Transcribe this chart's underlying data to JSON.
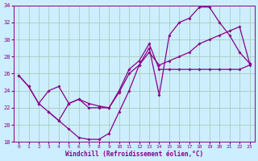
{
  "xlabel": "Windchill (Refroidissement éolien,°C)",
  "bg_color": "#cceeff",
  "grid_color": "#aaccbb",
  "line_color": "#880088",
  "xlim": [
    -0.5,
    23.5
  ],
  "ylim": [
    18,
    34
  ],
  "xticks": [
    0,
    1,
    2,
    3,
    4,
    5,
    6,
    7,
    8,
    9,
    10,
    11,
    12,
    13,
    14,
    15,
    16,
    17,
    18,
    19,
    20,
    21,
    22,
    23
  ],
  "yticks": [
    18,
    20,
    22,
    24,
    26,
    28,
    30,
    32,
    34
  ],
  "line1_x": [
    0,
    1,
    2,
    3,
    4,
    5,
    6,
    7,
    8,
    9,
    10,
    11,
    12,
    13,
    14,
    15,
    16,
    17,
    18,
    19,
    20,
    21,
    22,
    23
  ],
  "line1_y": [
    25.8,
    24.5,
    22.5,
    21.5,
    20.5,
    19.5,
    18.5,
    18.3,
    18.3,
    19.0,
    21.5,
    24.0,
    27.0,
    29.0,
    23.5,
    30.5,
    32.0,
    32.5,
    33.8,
    33.8,
    32.0,
    30.5,
    28.5,
    27.2
  ],
  "line2_x": [
    0,
    1,
    2,
    3,
    4,
    5,
    6,
    7,
    8,
    9,
    10,
    11,
    12,
    13,
    14,
    15,
    16,
    17,
    18,
    19,
    20,
    21,
    22,
    23
  ],
  "line2_y": [
    25.8,
    24.5,
    22.5,
    24.0,
    24.5,
    22.5,
    23.0,
    22.5,
    22.2,
    22.0,
    23.8,
    26.0,
    27.0,
    28.5,
    27.0,
    27.5,
    28.0,
    28.5,
    29.5,
    30.0,
    30.5,
    31.0,
    31.5,
    27.2
  ],
  "line3_x": [
    3,
    4,
    5,
    6,
    7,
    8,
    9,
    10,
    11,
    12,
    13,
    14,
    15,
    16,
    17,
    18,
    19,
    20,
    21,
    22,
    23
  ],
  "line3_y": [
    21.5,
    20.5,
    22.5,
    23.0,
    22.0,
    22.0,
    22.0,
    24.0,
    26.5,
    27.5,
    29.5,
    26.5,
    26.5,
    26.5,
    26.5,
    26.5,
    26.5,
    26.5,
    26.5,
    26.5,
    27.0
  ]
}
